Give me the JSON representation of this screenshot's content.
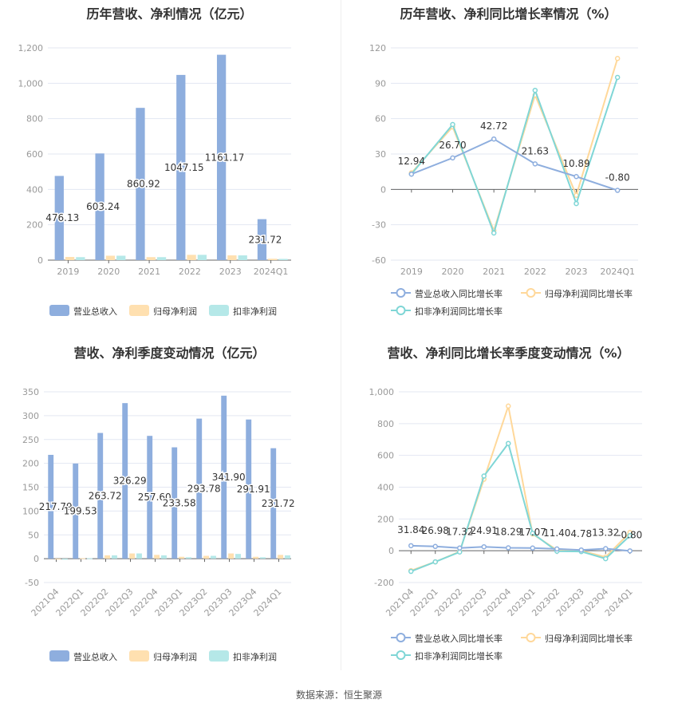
{
  "colors": {
    "revenue": "#8eaede",
    "net": "#ffe0b0",
    "deducted": "#b5e8e8",
    "net_line": "#ffd89a",
    "deducted_line": "#7fd6d6",
    "rev_line": "#8eaede"
  },
  "source": "数据来源：恒生聚源",
  "chart_data": [
    {
      "type": "bar",
      "title": "历年营收、净利情况（亿元）",
      "categories": [
        "2019",
        "2020",
        "2021",
        "2022",
        "2023",
        "2024Q1"
      ],
      "ylim": [
        0,
        1200
      ],
      "yticks": [
        0,
        200,
        400,
        600,
        800,
        1000,
        1200
      ],
      "yticklabels": [
        "0",
        "200",
        "400",
        "600",
        "800",
        "1,000",
        "1,200"
      ],
      "series": [
        {
          "name": "营业总收入",
          "values": [
            476.13,
            603.24,
            860.92,
            1047.15,
            1161.17,
            231.72
          ],
          "labels": [
            "476.13",
            "603.24",
            "860.92",
            "1047.15",
            "1161.17",
            "231.72"
          ]
        },
        {
          "name": "归母净利润",
          "values": [
            18,
            25,
            17,
            30,
            27,
            8
          ]
        },
        {
          "name": "扣非净利润",
          "values": [
            17,
            25,
            17,
            30,
            27,
            7
          ]
        }
      ],
      "legend": "bottom"
    },
    {
      "type": "line",
      "title": "历年营收、净利同比增长率情况（%）",
      "categories": [
        "2019",
        "2020",
        "2021",
        "2022",
        "2023",
        "2024Q1"
      ],
      "ylim": [
        -60,
        120
      ],
      "yticks": [
        -60,
        -30,
        0,
        30,
        60,
        90,
        120
      ],
      "yticklabels": [
        "-60",
        "-30",
        "0",
        "30",
        "60",
        "90",
        "120"
      ],
      "series": [
        {
          "name": "营业总收入同比增长率",
          "values": [
            12.94,
            26.7,
            42.72,
            21.63,
            10.89,
            -0.8
          ],
          "labels": [
            "12.94",
            "26.70",
            "42.72",
            "21.63",
            "10.89",
            "-0.80"
          ]
        },
        {
          "name": "归母净利润同比增长率",
          "values": [
            14,
            53,
            -35,
            80,
            -5,
            111
          ]
        },
        {
          "name": "扣非净利润同比增长率",
          "values": [
            13,
            55,
            -37,
            84,
            -12,
            95
          ]
        }
      ],
      "legend": "bottom"
    },
    {
      "type": "bar",
      "title": "营收、净利季度变动情况（亿元）",
      "categories": [
        "2021Q4",
        "2022Q1",
        "2022Q2",
        "2022Q3",
        "2022Q4",
        "2023Q1",
        "2023Q2",
        "2023Q3",
        "2023Q4",
        "2024Q1"
      ],
      "ylim": [
        -50,
        350
      ],
      "yticks": [
        -50,
        0,
        50,
        100,
        150,
        200,
        250,
        300,
        350
      ],
      "yticklabels": [
        "-50",
        "0",
        "50",
        "100",
        "150",
        "200",
        "250",
        "300",
        "350"
      ],
      "series": [
        {
          "name": "营业总收入",
          "values": [
            217.79,
            199.53,
            263.72,
            326.29,
            257.6,
            233.58,
            293.78,
            341.9,
            291.91,
            231.72
          ],
          "labels": [
            "217.79",
            "199.53",
            "263.72",
            "326.29",
            "257.60",
            "233.58",
            "293.78",
            "341.90",
            "291.91",
            "231.72"
          ]
        },
        {
          "name": "归母净利润",
          "values": [
            -1,
            1,
            7,
            11,
            8,
            4,
            6,
            11,
            4,
            8
          ]
        },
        {
          "name": "扣非净利润",
          "values": [
            -2,
            1,
            7,
            11,
            7,
            3,
            6,
            10,
            3,
            7
          ]
        }
      ],
      "legend": "bottom"
    },
    {
      "type": "line",
      "title": "营收、净利同比增长率季度变动情况（%）",
      "categories": [
        "2021Q4",
        "2022Q1",
        "2022Q2",
        "2022Q3",
        "2022Q4",
        "2023Q1",
        "2023Q2",
        "2023Q3",
        "2023Q4",
        "2024Q1"
      ],
      "ylim": [
        -200,
        1000
      ],
      "yticks": [
        -200,
        0,
        200,
        400,
        600,
        800,
        1000
      ],
      "yticklabels": [
        "-200",
        "0",
        "200",
        "400",
        "600",
        "800",
        "1,000"
      ],
      "series": [
        {
          "name": "营业总收入同比增长率",
          "values": [
            31.84,
            26.98,
            17.32,
            24.91,
            18.29,
            17.07,
            11.4,
            4.78,
            13.32,
            -0.8
          ],
          "labels": [
            "31.84",
            "26.98",
            "17.32",
            "24.91",
            "18.29",
            "17.07",
            "11.40",
            "4.78",
            "13.32",
            "-0.80"
          ]
        },
        {
          "name": "归母净利润同比增长率",
          "values": [
            -125,
            -70,
            -5,
            450,
            910,
            105,
            5,
            0,
            -40,
            115
          ]
        },
        {
          "name": "扣非净利润同比增长率",
          "values": [
            -130,
            -70,
            -8,
            470,
            675,
            110,
            -3,
            -5,
            -50,
            95
          ]
        }
      ],
      "legend": "bottom"
    }
  ]
}
